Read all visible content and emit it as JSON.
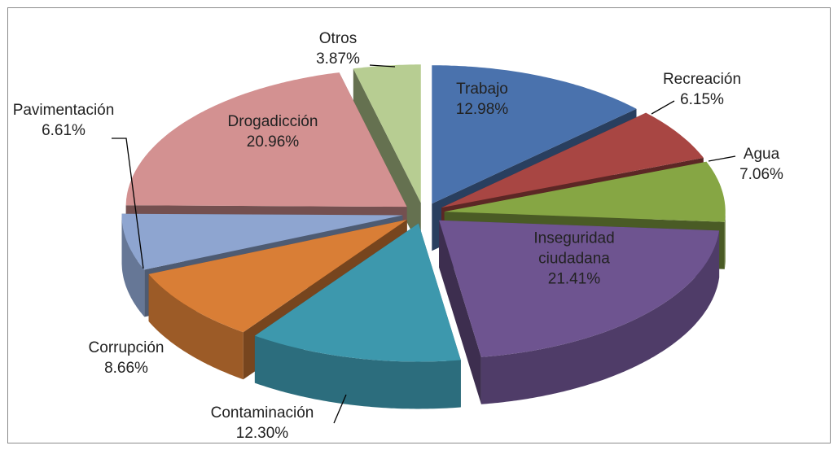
{
  "chart_data": {
    "type": "pie3d",
    "categories": [
      "Trabajo",
      "Recreación",
      "Agua",
      "Inseguridad ciudadana",
      "Contaminación",
      "Corrupción",
      "Pavimentación",
      "Drogadicción",
      "Otros"
    ],
    "values": [
      12.98,
      6.15,
      7.06,
      21.41,
      12.3,
      8.66,
      6.61,
      20.96,
      3.87
    ],
    "value_labels": [
      "12.98%",
      "6.15%",
      "7.06%",
      "21.41%",
      "12.30%",
      "8.66%",
      "6.61%",
      "20.96%",
      "3.87%"
    ],
    "colors": [
      "#4a72ad",
      "#a84643",
      "#86a644",
      "#6e5490",
      "#3d98ad",
      "#d97e36",
      "#8ea5d0",
      "#d39191",
      "#b7cd92"
    ]
  }
}
